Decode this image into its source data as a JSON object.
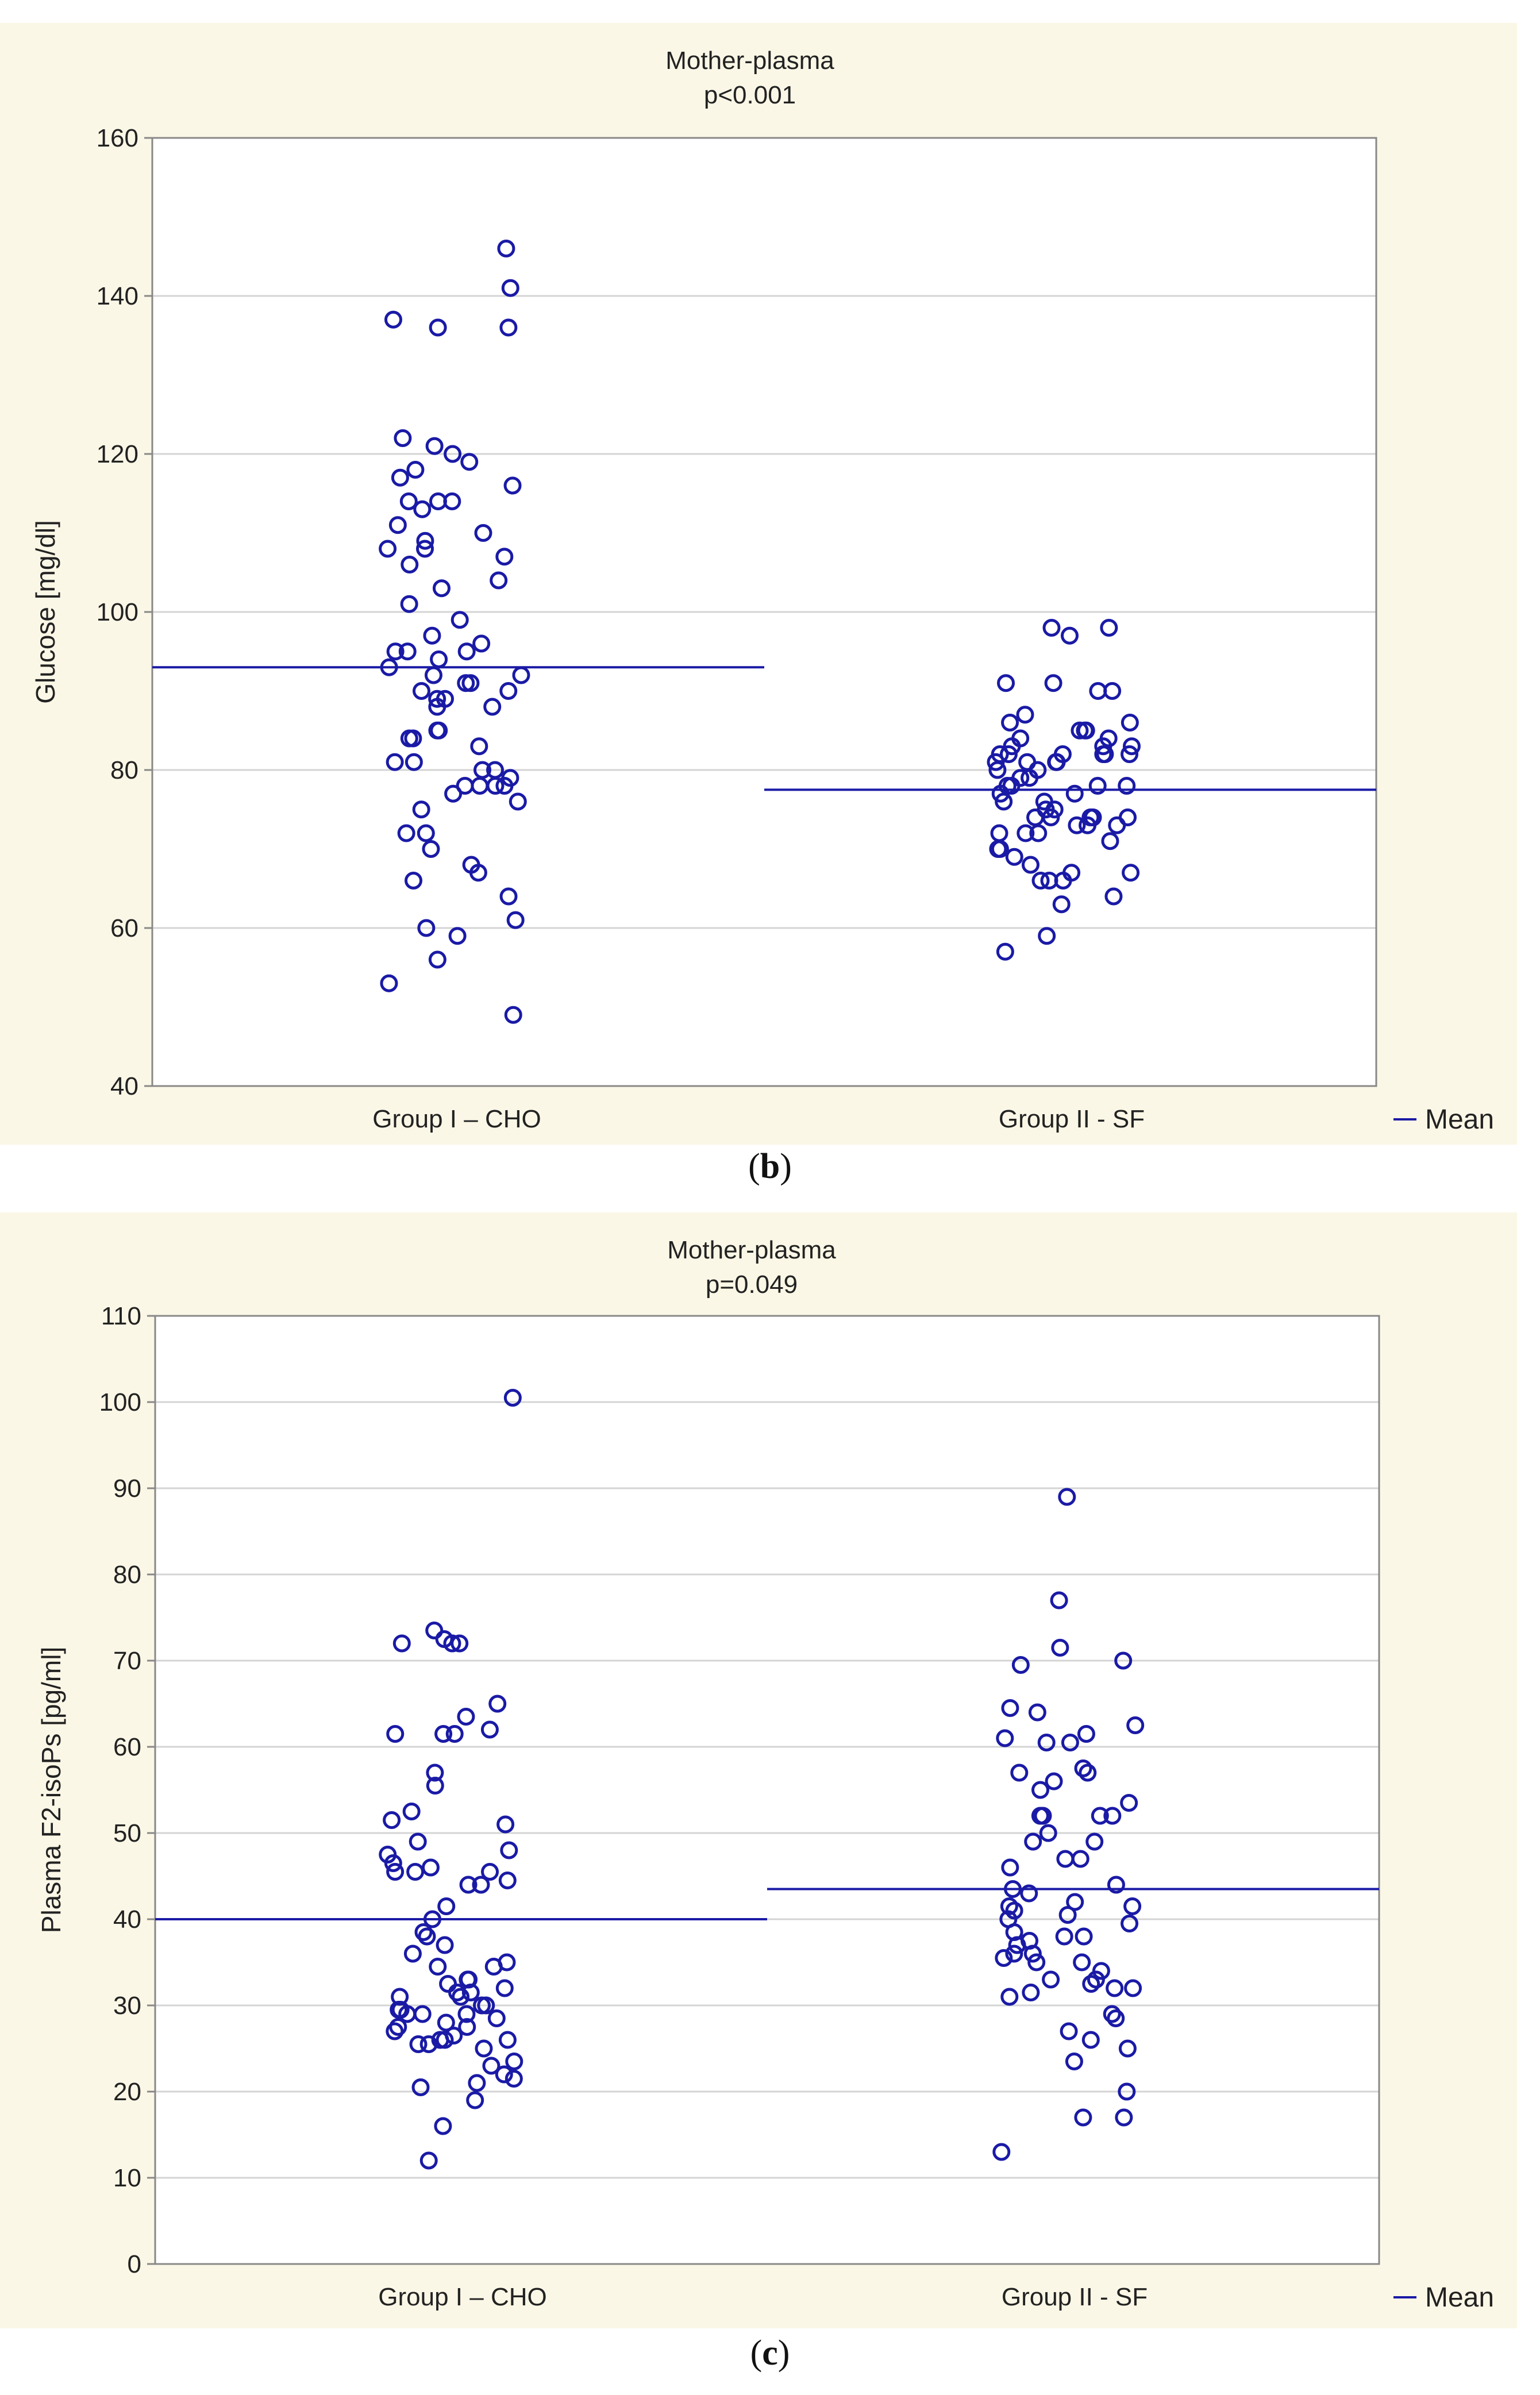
{
  "chart_data": [
    {
      "type": "scatter",
      "panel_label": "b",
      "title": "Mother-plasma",
      "subtitle": "p<0.001",
      "xlabel": "",
      "ylabel": "Glucose [mg/dl]",
      "ylim": [
        40,
        160
      ],
      "yticks": [
        40,
        60,
        80,
        100,
        120,
        140,
        160
      ],
      "categories": [
        "Group I – CHO",
        "Group II - SF"
      ],
      "legend": "Mean",
      "legend_position": "bottom-right",
      "grid": true,
      "mark_color": "#1a1aa6",
      "means": [
        93,
        77.5
      ],
      "groups": [
        {
          "category": "Group I – CHO",
          "values": [
            146,
            141,
            137,
            136,
            136,
            122,
            121,
            120,
            119,
            118,
            117,
            116,
            114,
            114,
            114,
            113,
            111,
            110,
            109,
            108,
            108,
            107,
            106,
            104,
            103,
            101,
            99,
            97,
            96,
            95,
            95,
            95,
            94,
            93,
            92,
            92,
            91,
            91,
            90,
            90,
            89,
            89,
            88,
            88,
            85,
            85,
            84,
            84,
            83,
            81,
            81,
            80,
            80,
            79,
            78,
            78,
            78,
            78,
            77,
            76,
            75,
            72,
            72,
            70,
            68,
            67,
            66,
            64,
            61,
            60,
            59,
            56,
            53,
            49
          ]
        },
        {
          "category": "Group II - SF",
          "values": [
            98,
            98,
            97,
            91,
            91,
            90,
            90,
            87,
            86,
            86,
            85,
            85,
            85,
            84,
            84,
            83,
            83,
            83,
            82,
            82,
            82,
            82,
            82,
            82,
            81,
            81,
            81,
            81,
            80,
            80,
            79,
            79,
            78,
            78,
            78,
            78,
            77,
            77,
            76,
            76,
            75,
            75,
            74,
            74,
            74,
            74,
            74,
            73,
            73,
            73,
            72,
            72,
            72,
            71,
            70,
            70,
            69,
            68,
            67,
            67,
            66,
            66,
            66,
            64,
            63,
            59,
            57
          ]
        }
      ]
    },
    {
      "type": "scatter",
      "panel_label": "c",
      "title": "Mother-plasma",
      "subtitle": "p=0.049",
      "xlabel": "",
      "ylabel": "Plasma F2-isoPs [pg/ml]",
      "ylim": [
        0,
        110
      ],
      "yticks": [
        0,
        10,
        20,
        30,
        40,
        50,
        60,
        70,
        80,
        90,
        100,
        110
      ],
      "categories": [
        "Group I – CHO",
        "Group II - SF"
      ],
      "legend": "Mean",
      "legend_position": "bottom-right",
      "grid": true,
      "mark_color": "#1a1aa6",
      "means": [
        40,
        43.5
      ],
      "groups": [
        {
          "category": "Group I – CHO",
          "values": [
            100.5,
            73.5,
            72.5,
            72,
            72,
            72,
            65,
            63.5,
            62,
            61.5,
            61.5,
            61.5,
            57,
            55.5,
            52.5,
            51.5,
            51,
            49,
            48,
            47.5,
            46.5,
            46,
            45.5,
            45.5,
            45.5,
            44.5,
            44,
            44,
            41.5,
            40,
            38.5,
            38,
            37,
            36,
            35,
            34.5,
            34.5,
            33,
            33,
            32.5,
            32,
            31.5,
            31.5,
            31,
            31,
            30,
            30,
            29.5,
            29.5,
            29,
            29,
            29,
            28.5,
            28,
            27.5,
            27.5,
            27,
            26.5,
            26,
            26,
            26,
            25.5,
            25.5,
            25,
            23.5,
            23,
            22,
            21.5,
            21,
            20.5,
            19,
            16,
            12
          ]
        },
        {
          "category": "Group II - SF",
          "values": [
            89,
            77,
            71.5,
            70,
            69.5,
            64.5,
            64,
            62.5,
            61.5,
            61,
            60.5,
            60.5,
            57.5,
            57,
            57,
            56,
            55,
            53.5,
            52,
            52,
            52,
            52,
            50,
            49,
            49,
            47,
            47,
            46,
            44,
            43.5,
            43,
            42,
            41.5,
            41.5,
            41,
            40.5,
            40,
            39.5,
            38.5,
            38,
            38,
            37.5,
            37,
            36,
            36,
            35.5,
            35,
            35,
            34,
            33,
            33,
            32.5,
            32,
            32,
            31.5,
            31,
            29,
            28.5,
            27,
            26,
            25,
            23.5,
            20,
            17,
            17,
            13
          ]
        }
      ]
    }
  ]
}
